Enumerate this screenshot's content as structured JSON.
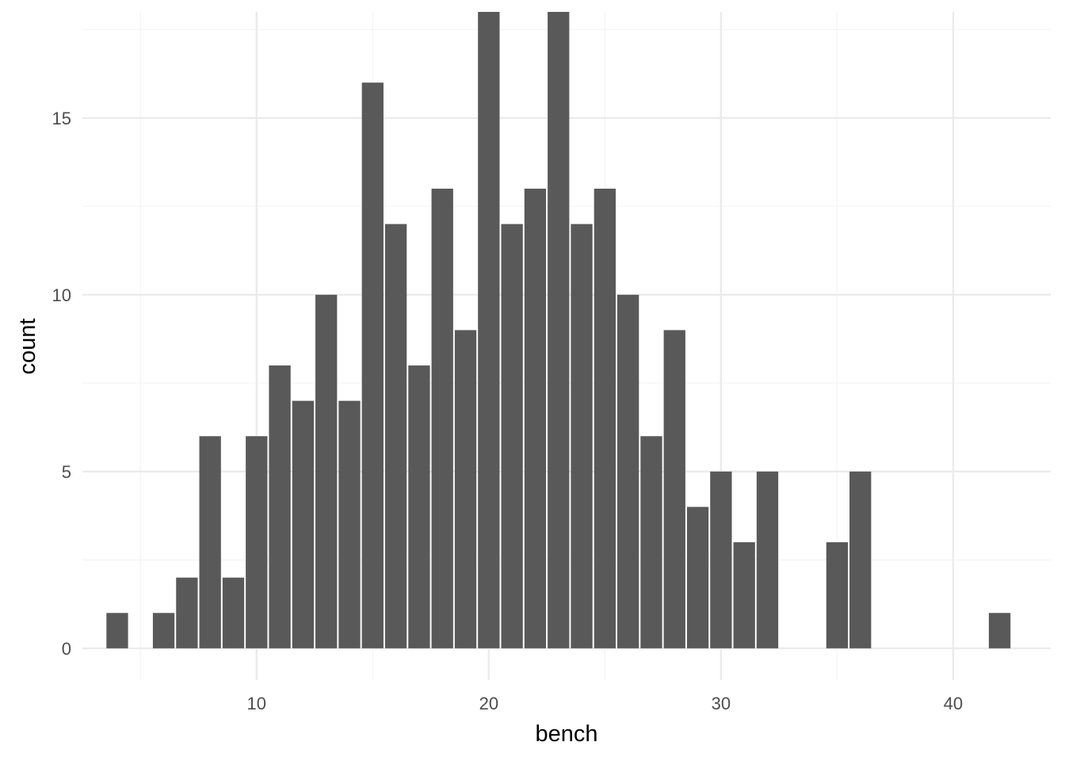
{
  "chart_data": {
    "type": "bar",
    "xlabel": "bench",
    "ylabel": "count",
    "xlim": [
      2.5,
      44.2
    ],
    "ylim": [
      -0.9,
      18.0
    ],
    "binwidth": 1,
    "x_ticks": [
      10,
      20,
      30,
      40
    ],
    "y_ticks": [
      0,
      5,
      10,
      15
    ],
    "grid": true,
    "colors": {
      "bar": "#595959",
      "grid_major": "#ebebeb",
      "grid_minor": "#f4f4f4",
      "background": "#ffffff"
    },
    "bins": [
      {
        "x": 4,
        "count": 1
      },
      {
        "x": 6,
        "count": 1
      },
      {
        "x": 7,
        "count": 2
      },
      {
        "x": 8,
        "count": 6
      },
      {
        "x": 9,
        "count": 2
      },
      {
        "x": 10,
        "count": 6
      },
      {
        "x": 11,
        "count": 8
      },
      {
        "x": 12,
        "count": 7
      },
      {
        "x": 13,
        "count": 10
      },
      {
        "x": 14,
        "count": 7
      },
      {
        "x": 15,
        "count": 16
      },
      {
        "x": 16,
        "count": 12
      },
      {
        "x": 17,
        "count": 8
      },
      {
        "x": 18,
        "count": 13
      },
      {
        "x": 19,
        "count": 9
      },
      {
        "x": 20,
        "count": 18
      },
      {
        "x": 21,
        "count": 12
      },
      {
        "x": 22,
        "count": 13
      },
      {
        "x": 23,
        "count": 18
      },
      {
        "x": 24,
        "count": 12
      },
      {
        "x": 25,
        "count": 13
      },
      {
        "x": 26,
        "count": 10
      },
      {
        "x": 27,
        "count": 6
      },
      {
        "x": 28,
        "count": 9
      },
      {
        "x": 29,
        "count": 4
      },
      {
        "x": 30,
        "count": 5
      },
      {
        "x": 31,
        "count": 3
      },
      {
        "x": 32,
        "count": 5
      },
      {
        "x": 35,
        "count": 3
      },
      {
        "x": 36,
        "count": 5
      },
      {
        "x": 42,
        "count": 1
      }
    ]
  }
}
